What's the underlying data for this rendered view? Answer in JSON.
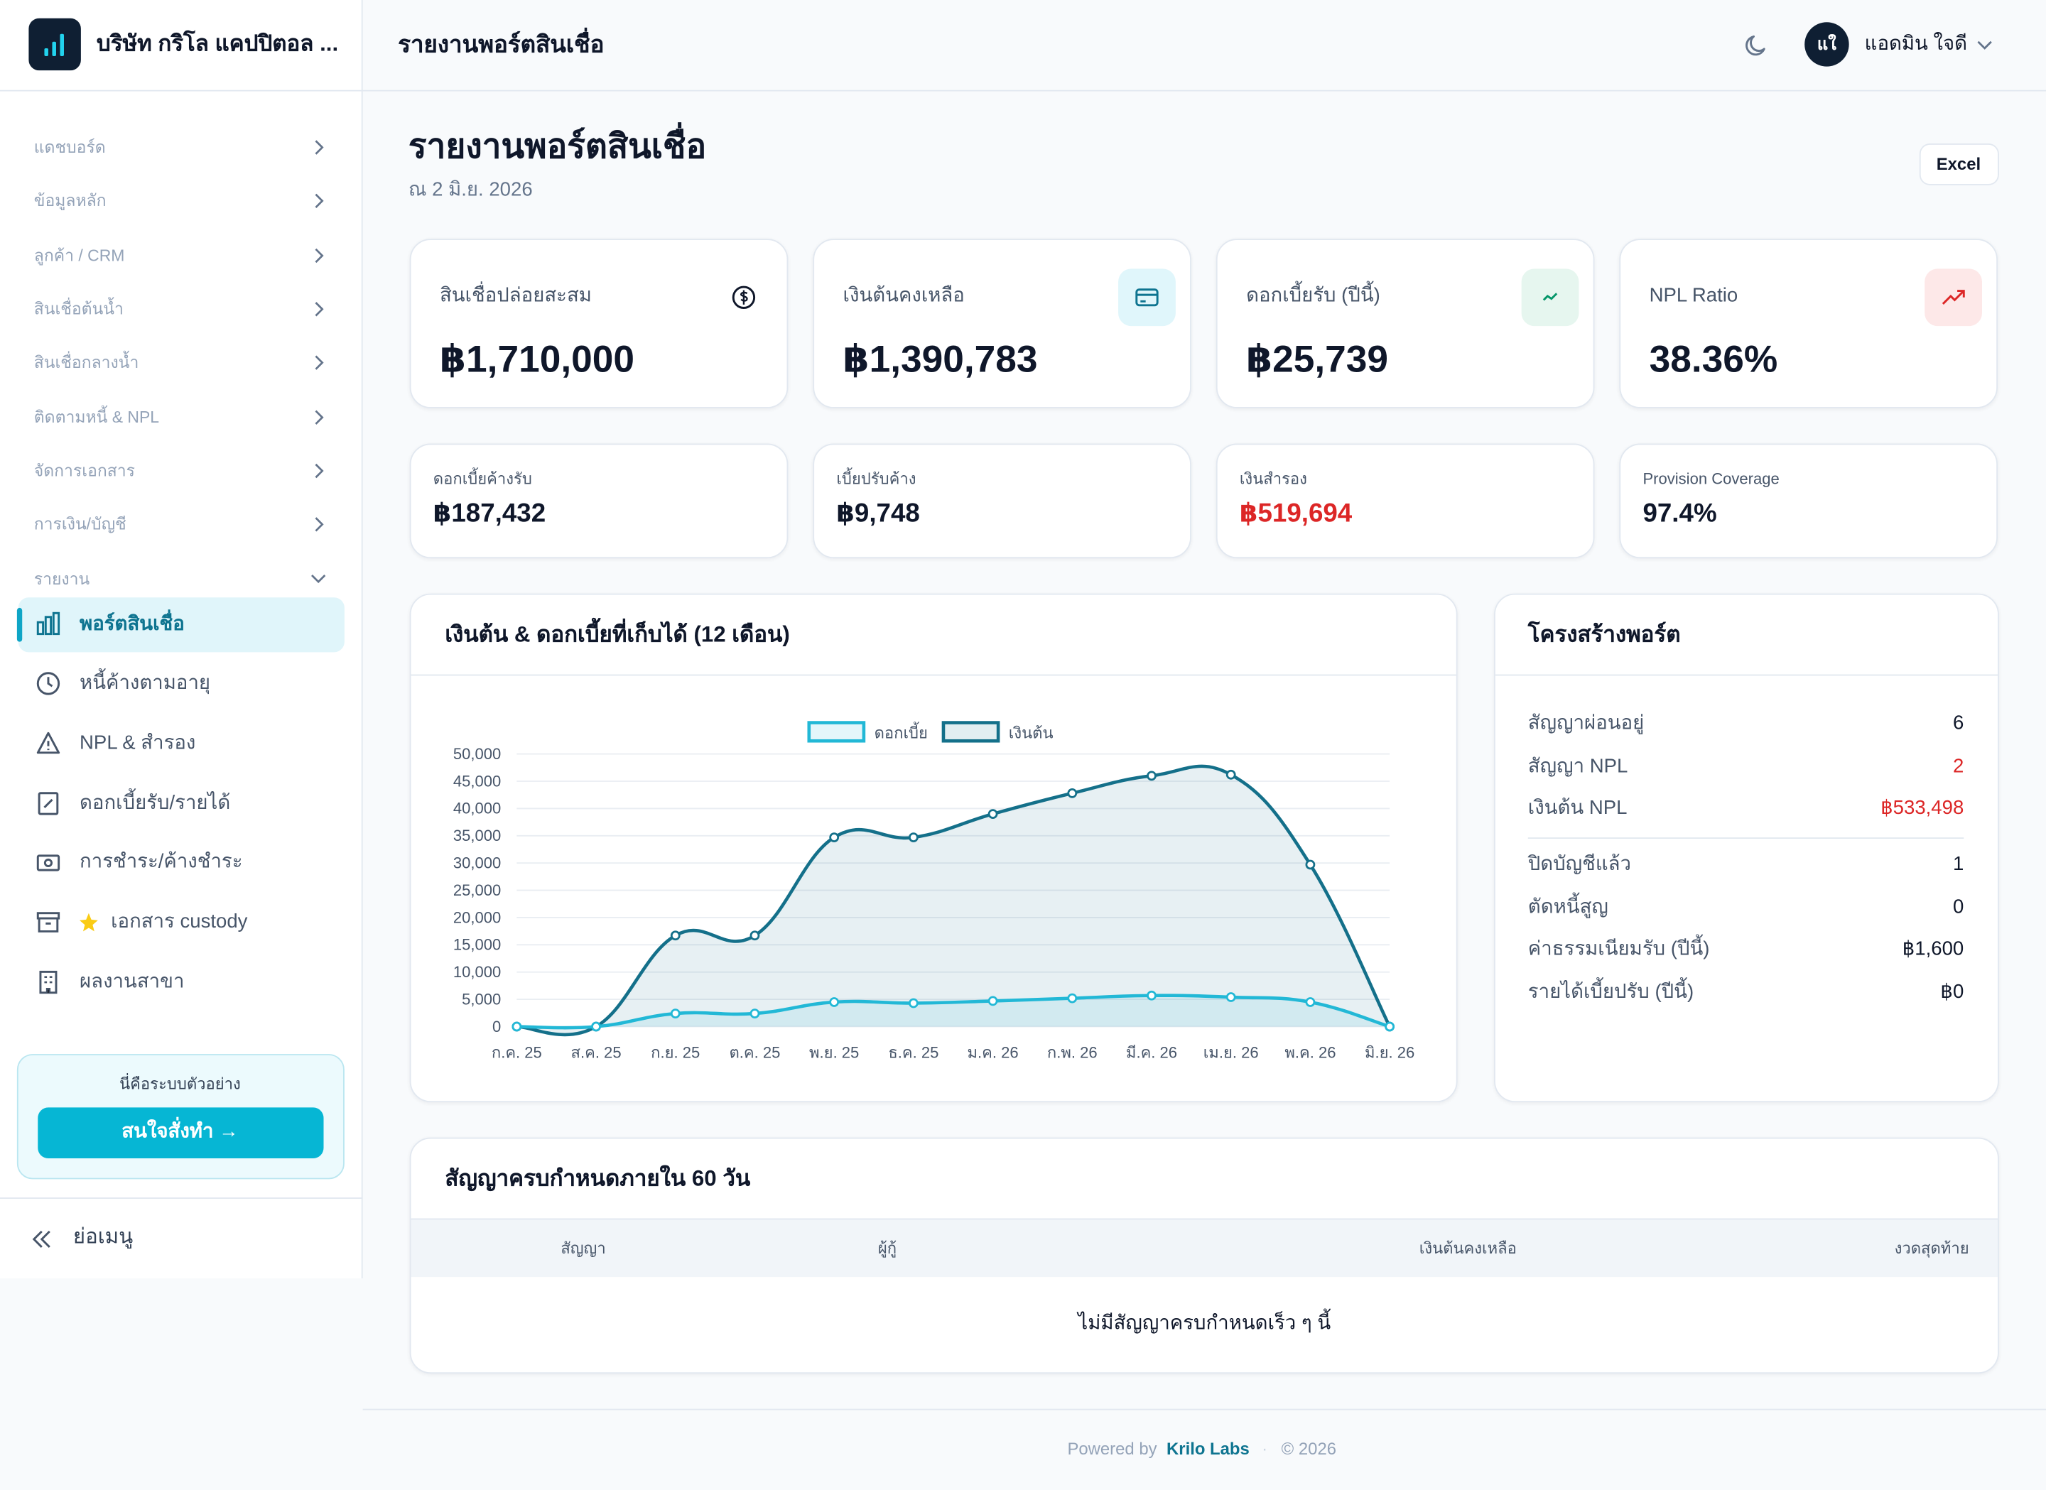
{
  "header": {
    "company": "บริษัท กริโล แคปปิตอล ...",
    "title": "รายงานพอร์ตสินเชื่อ",
    "avatar": "แใ",
    "user": "แอดมิน ใจดี"
  },
  "sidebar": {
    "menu": [
      "แดชบอร์ด",
      "ข้อมูลหลัก",
      "ลูกค้า / CRM",
      "สินเชื่อต้นน้ำ",
      "สินเชื่อกลางน้ำ",
      "ติดตามหนี้ & NPL",
      "จัดการเอกสาร",
      "การเงิน/บัญชี"
    ],
    "section": "รายงาน",
    "reports": [
      "พอร์ตสินเชื่อ",
      "หนี้ค้างตามอายุ",
      "NPL & สำรอง",
      "ดอกเบี้ยรับ/รายได้",
      "การชำระ/ค้างชำระ",
      "เอกสาร custody",
      "ผลงานสาขา"
    ],
    "demo_note": "นี่คือระบบตัวอย่าง",
    "demo_button": "สนใจสั่งทำ →",
    "collapse": "ย่อเมนู"
  },
  "page": {
    "title": "รายงานพอร์ตสินเชื่อ",
    "subtitle": "ณ 2 มิ.ย. 2026",
    "export": "Excel"
  },
  "kpis": [
    {
      "label": "สินเชื่อปล่อยสะสม",
      "value": "฿1,710,000"
    },
    {
      "label": "เงินต้นคงเหลือ",
      "value": "฿1,390,783"
    },
    {
      "label": "ดอกเบี้ยรับ (ปีนี้)",
      "value": "฿25,739"
    },
    {
      "label": "NPL Ratio",
      "value": "38.36%"
    }
  ],
  "small_kpis": [
    {
      "label": "ดอกเบี้ยค้างรับ",
      "value": "฿187,432"
    },
    {
      "label": "เบี้ยปรับค้าง",
      "value": "฿9,748"
    },
    {
      "label": "เงินสำรอง",
      "value": "฿519,694"
    },
    {
      "label": "Provision Coverage",
      "value": "97.4%"
    }
  ],
  "chart_data": {
    "type": "line",
    "title": "เงินต้น & ดอกเบี้ยที่เก็บได้ (12 เดือน)",
    "categories": [
      "ก.ค. 25",
      "ส.ค. 25",
      "ก.ย. 25",
      "ต.ค. 25",
      "พ.ย. 25",
      "ธ.ค. 25",
      "ม.ค. 26",
      "ก.พ. 26",
      "มี.ค. 26",
      "เม.ย. 26",
      "พ.ค. 26",
      "มิ.ย. 26"
    ],
    "series": [
      {
        "name": "ดอกเบี้ย",
        "color": "#22b8d6",
        "values": [
          0,
          0,
          2400,
          2400,
          4500,
          4300,
          4700,
          5200,
          5700,
          5400,
          4500,
          0
        ]
      },
      {
        "name": "เงินต้น",
        "color": "#14708a",
        "values": [
          0,
          0,
          16700,
          16700,
          34700,
          34700,
          39000,
          42800,
          46000,
          46200,
          29700,
          0
        ]
      }
    ],
    "ylim": [
      0,
      50000
    ],
    "yticks": [
      0,
      {
        "value": 5000,
        "label": "5,000"
      },
      {
        "value": 10000,
        "label": "10,000"
      },
      {
        "value": 15000,
        "label": "15,000"
      },
      {
        "value": 20000,
        "label": "20,000"
      },
      {
        "value": 25000,
        "label": "25,000"
      },
      {
        "value": 30000,
        "label": "30,000"
      },
      {
        "value": 35000,
        "label": "35,000"
      },
      {
        "value": 40000,
        "label": "40,000"
      },
      {
        "value": 45000,
        "label": "45,000"
      },
      {
        "value": 50000,
        "label": "50,000"
      }
    ],
    "grid": true,
    "fill": true
  },
  "structure": {
    "title": "โครงสร้างพอร์ต",
    "rows": [
      {
        "label": "สัญญาผ่อนอยู่",
        "value": "6"
      },
      {
        "label": "สัญญา NPL",
        "value": "2"
      },
      {
        "label": "เงินต้น NPL",
        "value": "฿533,498"
      },
      {
        "label": "ปิดบัญชีแล้ว",
        "value": "1"
      },
      {
        "label": "ตัดหนี้สูญ",
        "value": "0"
      },
      {
        "label": "ค่าธรรมเนียมรับ (ปีนี้)",
        "value": "฿1,600"
      },
      {
        "label": "รายได้เบี้ยปรับ (ปีนี้)",
        "value": "฿0"
      }
    ]
  },
  "table": {
    "title": "สัญญาครบกำหนดภายใน 60 วัน",
    "columns": [
      "สัญญา",
      "ผู้กู้",
      "เงินต้นคงเหลือ",
      "งวดสุดท้าย"
    ],
    "empty": "ไม่มีสัญญาครบกำหนดเร็ว ๆ นี้"
  },
  "footer": {
    "prefix": "Powered by",
    "brand": "Krilo Labs",
    "separator": "·",
    "copyright": "© 2026"
  }
}
